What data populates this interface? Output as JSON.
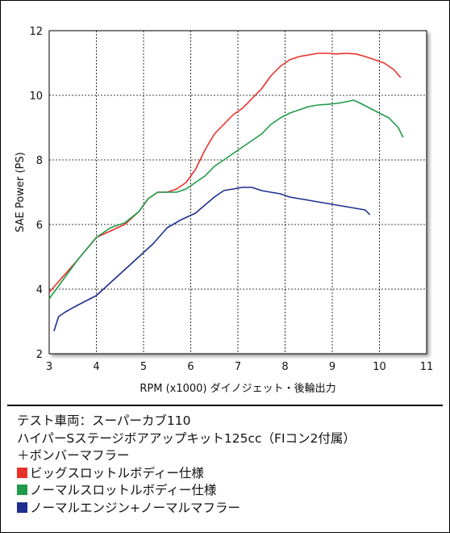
{
  "chart_data": {
    "type": "line",
    "xlabel": "RPM (x1000) ダイノジェット・後輪出力",
    "ylabel": "SAE Power (PS)",
    "xlim": [
      3,
      11
    ],
    "ylim": [
      2,
      12
    ],
    "x_ticks": [
      "3",
      "4",
      "5",
      "6",
      "7",
      "8",
      "9",
      "10",
      "11"
    ],
    "y_ticks": [
      "2",
      "4",
      "6",
      "8",
      "10",
      "12"
    ],
    "grid": true,
    "series": [
      {
        "name": "ビッグスロットルボディー仕様",
        "color": "#e8302a",
        "x": [
          3.0,
          3.3,
          3.6,
          4.0,
          4.3,
          4.6,
          4.9,
          5.1,
          5.3,
          5.5,
          5.7,
          5.9,
          6.1,
          6.3,
          6.5,
          6.7,
          6.9,
          7.1,
          7.3,
          7.5,
          7.7,
          7.9,
          8.1,
          8.3,
          8.5,
          8.7,
          8.9,
          9.1,
          9.3,
          9.5,
          9.7,
          9.9,
          10.1,
          10.3,
          10.45
        ],
        "y": [
          3.9,
          4.4,
          4.9,
          5.6,
          5.8,
          6.0,
          6.4,
          6.8,
          7.0,
          7.0,
          7.1,
          7.3,
          7.7,
          8.3,
          8.8,
          9.1,
          9.4,
          9.6,
          9.9,
          10.2,
          10.6,
          10.9,
          11.1,
          11.2,
          11.25,
          11.3,
          11.3,
          11.28,
          11.3,
          11.28,
          11.2,
          11.1,
          11.0,
          10.8,
          10.55
        ]
      },
      {
        "name": "ノーマルスロットルボディー仕様",
        "color": "#1f9a4a",
        "x": [
          3.0,
          3.3,
          3.6,
          4.0,
          4.3,
          4.6,
          4.9,
          5.1,
          5.3,
          5.5,
          5.7,
          5.9,
          6.1,
          6.3,
          6.5,
          6.7,
          6.9,
          7.1,
          7.3,
          7.5,
          7.7,
          7.9,
          8.1,
          8.3,
          8.5,
          8.7,
          8.9,
          9.1,
          9.3,
          9.45,
          9.6,
          9.8,
          10.0,
          10.2,
          10.4,
          10.5
        ],
        "y": [
          3.7,
          4.3,
          4.9,
          5.6,
          5.9,
          6.05,
          6.4,
          6.8,
          7.0,
          7.0,
          7.0,
          7.1,
          7.3,
          7.5,
          7.8,
          8.0,
          8.2,
          8.4,
          8.6,
          8.8,
          9.1,
          9.3,
          9.45,
          9.55,
          9.65,
          9.7,
          9.72,
          9.75,
          9.8,
          9.85,
          9.75,
          9.6,
          9.45,
          9.3,
          9.0,
          8.7
        ]
      },
      {
        "name": "ノーマルエンジン+ノーマルマフラー",
        "color": "#1e2f8f",
        "x": [
          3.1,
          3.2,
          3.35,
          3.6,
          4.0,
          4.3,
          4.6,
          4.9,
          5.2,
          5.5,
          5.8,
          6.1,
          6.3,
          6.5,
          6.7,
          6.9,
          7.1,
          7.3,
          7.5,
          7.7,
          7.9,
          8.1,
          8.3,
          8.5,
          8.7,
          8.9,
          9.1,
          9.3,
          9.5,
          9.7,
          9.8
        ],
        "y": [
          2.7,
          3.15,
          3.3,
          3.5,
          3.8,
          4.2,
          4.6,
          5.0,
          5.4,
          5.9,
          6.15,
          6.35,
          6.6,
          6.85,
          7.05,
          7.1,
          7.15,
          7.15,
          7.05,
          7.0,
          6.95,
          6.85,
          6.8,
          6.75,
          6.7,
          6.65,
          6.6,
          6.55,
          6.5,
          6.45,
          6.3
        ]
      }
    ]
  },
  "legend": {
    "vehicle": "テスト車両：スーパーカブ110",
    "kit": "ハイパーSステージボアアップキット125cc（FIコン2付属）",
    "muffler": "＋ボンバーマフラー",
    "items": [
      {
        "label": "ビッグスロットルボディー仕様",
        "color": "#e8302a"
      },
      {
        "label": "ノーマルスロットルボディー仕様",
        "color": "#1f9a4a"
      },
      {
        "label": "ノーマルエンジン+ノーマルマフラー",
        "color": "#1e2f8f"
      }
    ]
  }
}
